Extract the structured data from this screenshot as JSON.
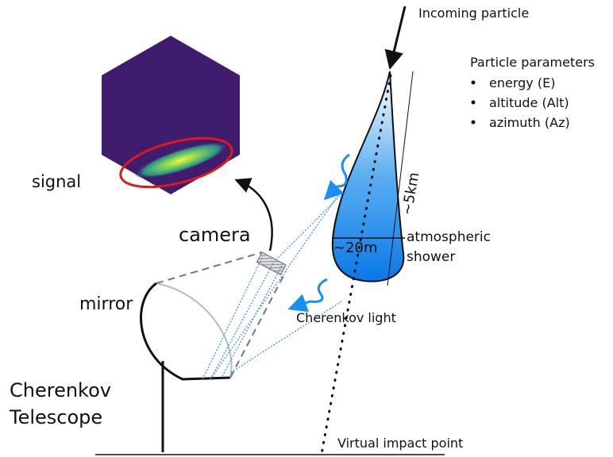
{
  "labels": {
    "incoming": "Incoming particle",
    "parameters_title": "Particle parameters",
    "parameters": [
      "energy (E)",
      "altitude (Alt)",
      "azimuth (Az)"
    ],
    "length": "~5km",
    "width": "~20m",
    "shower": [
      "atmospheric",
      "shower"
    ],
    "light": "Cherenkov light",
    "camera": "camera",
    "signal": "signal",
    "mirror": "mirror",
    "telescope": [
      "Cherenkov",
      "Telescope"
    ],
    "impact": "Virtual impact point"
  }
}
